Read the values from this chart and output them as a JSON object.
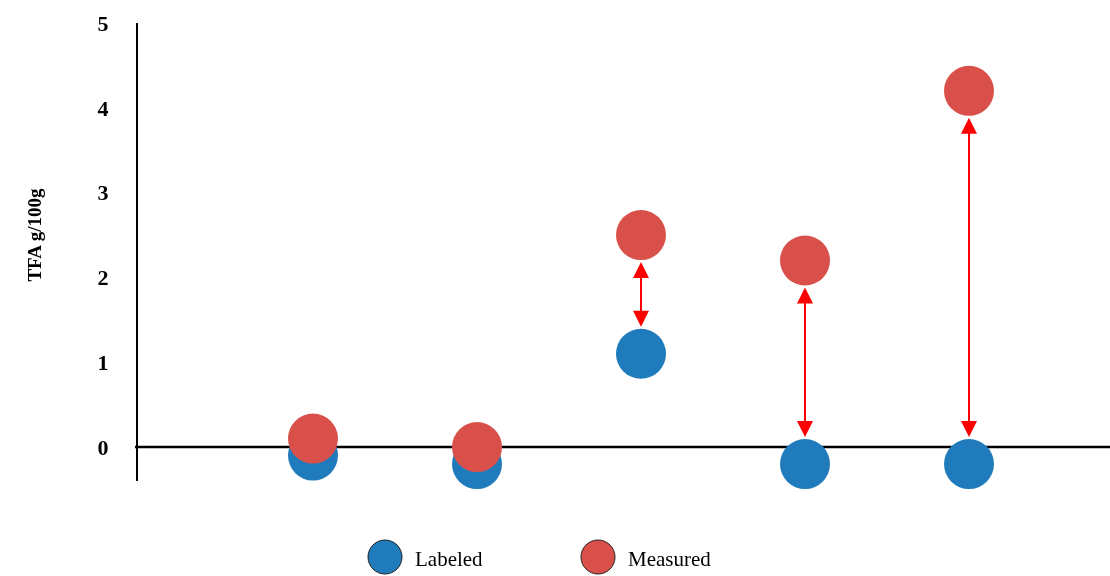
{
  "chart_data": {
    "type": "scatter",
    "ylabel": "TFA g/100g",
    "categories": [
      null,
      null,
      null,
      null,
      null
    ],
    "series": [
      {
        "name": "Labeled",
        "color": "#1f7bbb",
        "values": [
          -0.1,
          -0.2,
          1.1,
          -0.2,
          -0.2
        ]
      },
      {
        "name": "Measured",
        "color": "#d9504a",
        "values": [
          0.1,
          0,
          2.5,
          2.2,
          4.2
        ]
      }
    ],
    "ylim": [
      -0.4,
      5
    ],
    "yticks": [
      0,
      1,
      2,
      3,
      4,
      5
    ],
    "marker": "circle",
    "legend": "bottom"
  }
}
